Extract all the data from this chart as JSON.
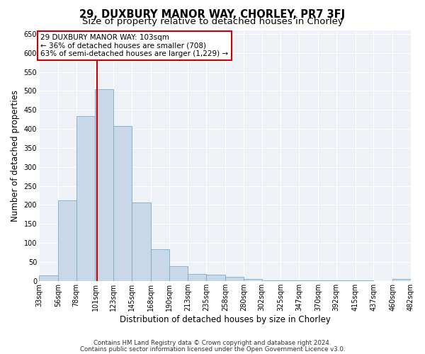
{
  "title": "29, DUXBURY MANOR WAY, CHORLEY, PR7 3FJ",
  "subtitle": "Size of property relative to detached houses in Chorley",
  "xlabel": "Distribution of detached houses by size in Chorley",
  "ylabel": "Number of detached properties",
  "footnote1": "Contains HM Land Registry data © Crown copyright and database right 2024.",
  "footnote2": "Contains public sector information licensed under the Open Government Licence v3.0.",
  "bins": [
    33,
    56,
    78,
    101,
    123,
    145,
    168,
    190,
    213,
    235,
    258,
    280,
    302,
    325,
    347,
    370,
    392,
    415,
    437,
    460,
    482
  ],
  "bar_heights": [
    15,
    212,
    434,
    505,
    408,
    207,
    83,
    38,
    18,
    17,
    10,
    5,
    2,
    2,
    2,
    2,
    2,
    2,
    0,
    5
  ],
  "bar_color": "#c8d8e8",
  "bar_edge_color": "#7aaac8",
  "vline_x": 103,
  "vline_color": "#cc0000",
  "annotation_line1": "29 DUXBURY MANOR WAY: 103sqm",
  "annotation_line2": "← 36% of detached houses are smaller (708)",
  "annotation_line3": "63% of semi-detached houses are larger (1,229) →",
  "annotation_box_color": "#ffffff",
  "annotation_box_edge": "#cc0000",
  "ylim": [
    0,
    660
  ],
  "yticks": [
    0,
    50,
    100,
    150,
    200,
    250,
    300,
    350,
    400,
    450,
    500,
    550,
    600,
    650
  ],
  "bg_color": "#eef2f7",
  "title_fontsize": 10.5,
  "subtitle_fontsize": 9.5,
  "tick_label_fontsize": 7,
  "ylabel_fontsize": 8.5,
  "xlabel_fontsize": 8.5,
  "annotation_fontsize": 7.5,
  "footnote_fontsize": 6.2
}
